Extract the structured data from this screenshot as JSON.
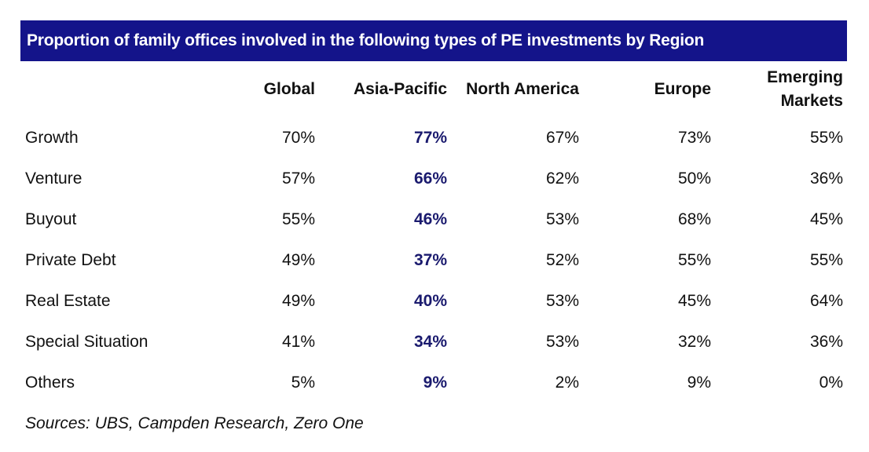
{
  "title": "Proportion of family offices involved in the following types of PE investments by Region",
  "table": {
    "columns": [
      "Global",
      "Asia-Pacific",
      "North America",
      "Europe",
      "Emerging Markets"
    ],
    "rows": [
      {
        "label": "Growth",
        "values": [
          "70%",
          "77%",
          "67%",
          "73%",
          "55%"
        ]
      },
      {
        "label": "Venture",
        "values": [
          "57%",
          "66%",
          "62%",
          "50%",
          "36%"
        ]
      },
      {
        "label": "Buyout",
        "values": [
          "55%",
          "46%",
          "53%",
          "68%",
          "45%"
        ]
      },
      {
        "label": "Private Debt",
        "values": [
          "49%",
          "37%",
          "52%",
          "55%",
          "55%"
        ]
      },
      {
        "label": "Real Estate",
        "values": [
          "49%",
          "40%",
          "53%",
          "45%",
          "64%"
        ]
      },
      {
        "label": "Special Situation",
        "values": [
          "41%",
          "34%",
          "53%",
          "32%",
          "36%"
        ]
      },
      {
        "label": "Others",
        "values": [
          "5%",
          "9%",
          "2%",
          "9%",
          "0%"
        ]
      }
    ]
  },
  "source": "Sources: UBS, Campden Research, Zero One"
}
